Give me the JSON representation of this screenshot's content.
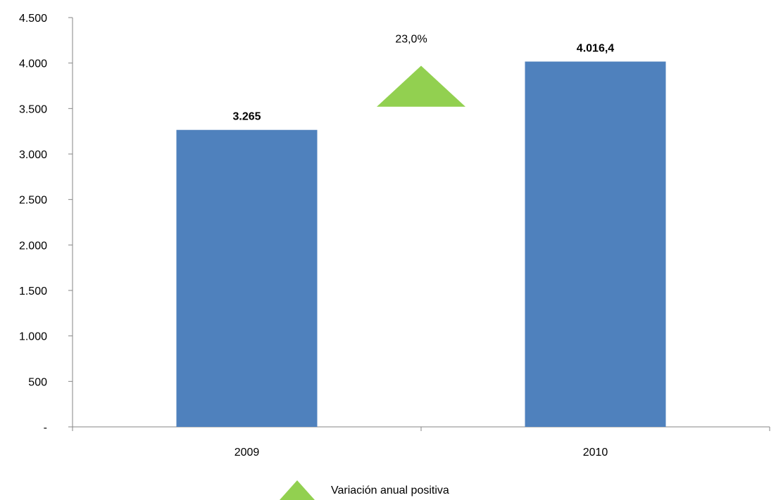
{
  "chart_data": {
    "type": "bar",
    "categories": [
      "2009",
      "2010"
    ],
    "values": [
      3265,
      4016.4
    ],
    "value_labels": [
      "3.265",
      "4.016,4"
    ],
    "ylim": [
      0,
      4500
    ],
    "ytick_labels": [
      "-",
      "500",
      "1.000",
      "1.500",
      "2.000",
      "2.500",
      "3.000",
      "3.500",
      "4.000",
      "4.500"
    ],
    "bar_color": "#4f81bd",
    "grid": false,
    "annotation": {
      "type": "triangle-up",
      "label": "23,0%",
      "color": "#92d050",
      "peak_value": 3970,
      "base_value": 3520
    },
    "legend": {
      "position": "bottom-center",
      "items": [
        {
          "label": "Variación anual positiva",
          "marker": "triangle-up",
          "color": "#92d050"
        }
      ]
    },
    "title": "",
    "xlabel": "",
    "ylabel": ""
  }
}
